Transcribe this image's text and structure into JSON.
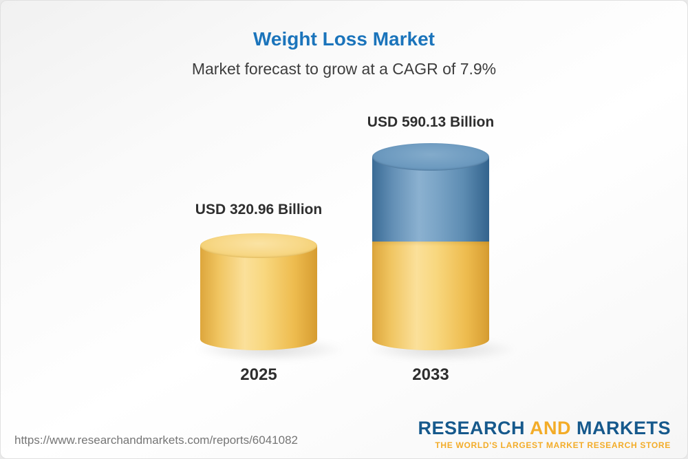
{
  "header": {
    "title": "Weight Loss Market",
    "subtitle": "Market forecast to grow at a CAGR of 7.9%"
  },
  "chart_data": {
    "type": "bar",
    "title": "Weight Loss Market",
    "subtitle": "Market forecast to grow at a CAGR of 7.9%",
    "cagr_percent": 7.9,
    "unit": "USD Billion",
    "categories": [
      "2025",
      "2033"
    ],
    "values": [
      320.96,
      590.13
    ],
    "value_labels": [
      "USD 320.96 Billion",
      "USD 590.13 Billion"
    ],
    "ylim": [
      0,
      650
    ],
    "grid": false,
    "legend": false,
    "bar_style": "3d-cylinder",
    "colors": {
      "bar_2025": "#f2c75f",
      "bar_2033_upper": "#5d8cb2",
      "bar_2033_lower": "#f2c75f",
      "title": "#1b74bb",
      "text": "#2e2e2e"
    }
  },
  "footer": {
    "url": "https://www.researchandmarkets.com/reports/6041082",
    "logo": {
      "word1": "RESEARCH",
      "word2": "AND",
      "word3": "MARKETS",
      "tagline": "THE WORLD'S LARGEST MARKET RESEARCH STORE"
    }
  }
}
